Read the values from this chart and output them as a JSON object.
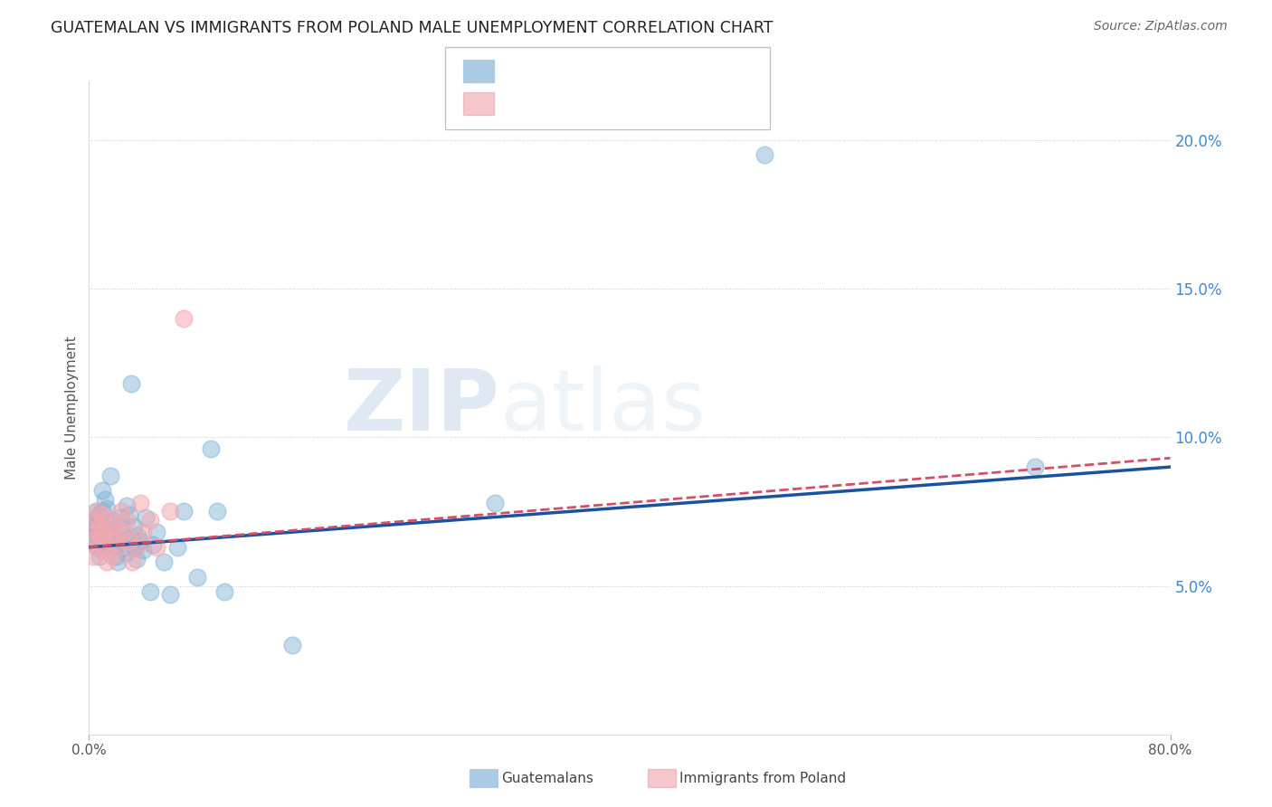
{
  "title": "GUATEMALAN VS IMMIGRANTS FROM POLAND MALE UNEMPLOYMENT CORRELATION CHART",
  "source": "Source: ZipAtlas.com",
  "ylabel": "Male Unemployment",
  "xlim": [
    0,
    0.8
  ],
  "ylim": [
    0,
    0.22
  ],
  "yticks_right": [
    0.05,
    0.1,
    0.15,
    0.2
  ],
  "ytick_labels_right": [
    "5.0%",
    "10.0%",
    "15.0%",
    "20.0%"
  ],
  "guatemalan_color": "#7bafd4",
  "poland_color": "#f4a8b0",
  "guatemalan_line_color": "#1a52a0",
  "poland_line_color": "#d0506a",
  "legend_label1": "Guatemalans",
  "legend_label2": "Immigrants from Poland",
  "watermark_zip": "ZIP",
  "watermark_atlas": "atlas",
  "guatemalan_x": [
    0.002,
    0.003,
    0.004,
    0.004,
    0.005,
    0.005,
    0.005,
    0.006,
    0.006,
    0.007,
    0.007,
    0.008,
    0.008,
    0.008,
    0.009,
    0.009,
    0.01,
    0.01,
    0.01,
    0.01,
    0.011,
    0.012,
    0.013,
    0.014,
    0.015,
    0.016,
    0.017,
    0.018,
    0.019,
    0.02,
    0.021,
    0.022,
    0.023,
    0.024,
    0.025,
    0.026,
    0.027,
    0.028,
    0.03,
    0.031,
    0.032,
    0.033,
    0.034,
    0.035,
    0.036,
    0.038,
    0.04,
    0.042,
    0.045,
    0.047,
    0.05,
    0.055,
    0.06,
    0.065,
    0.07,
    0.08,
    0.09,
    0.095,
    0.1,
    0.15,
    0.3,
    0.5,
    0.7
  ],
  "guatemalan_y": [
    0.07,
    0.068,
    0.072,
    0.065,
    0.071,
    0.067,
    0.075,
    0.063,
    0.069,
    0.066,
    0.074,
    0.06,
    0.064,
    0.073,
    0.067,
    0.071,
    0.062,
    0.068,
    0.075,
    0.082,
    0.063,
    0.079,
    0.076,
    0.069,
    0.065,
    0.087,
    0.072,
    0.068,
    0.064,
    0.06,
    0.058,
    0.066,
    0.073,
    0.07,
    0.067,
    0.063,
    0.061,
    0.077,
    0.074,
    0.118,
    0.065,
    0.07,
    0.063,
    0.059,
    0.067,
    0.065,
    0.062,
    0.073,
    0.048,
    0.064,
    0.068,
    0.058,
    0.047,
    0.063,
    0.075,
    0.053,
    0.096,
    0.075,
    0.048,
    0.03,
    0.078,
    0.195,
    0.09
  ],
  "poland_x": [
    0.002,
    0.003,
    0.004,
    0.005,
    0.006,
    0.007,
    0.008,
    0.009,
    0.01,
    0.011,
    0.012,
    0.013,
    0.015,
    0.016,
    0.017,
    0.018,
    0.02,
    0.022,
    0.024,
    0.026,
    0.028,
    0.03,
    0.032,
    0.035,
    0.038,
    0.04,
    0.045,
    0.05,
    0.06,
    0.07
  ],
  "poland_y": [
    0.065,
    0.06,
    0.072,
    0.068,
    0.075,
    0.063,
    0.07,
    0.066,
    0.074,
    0.068,
    0.062,
    0.058,
    0.072,
    0.065,
    0.06,
    0.07,
    0.067,
    0.063,
    0.075,
    0.068,
    0.072,
    0.065,
    0.058,
    0.063,
    0.078,
    0.068,
    0.072,
    0.063,
    0.075,
    0.14
  ],
  "guat_line_x0": 0.0,
  "guat_line_y0": 0.063,
  "guat_line_x1": 0.8,
  "guat_line_y1": 0.09,
  "pol_line_x0": 0.0,
  "pol_line_y0": 0.063,
  "pol_line_x1": 0.8,
  "pol_line_y1": 0.093
}
